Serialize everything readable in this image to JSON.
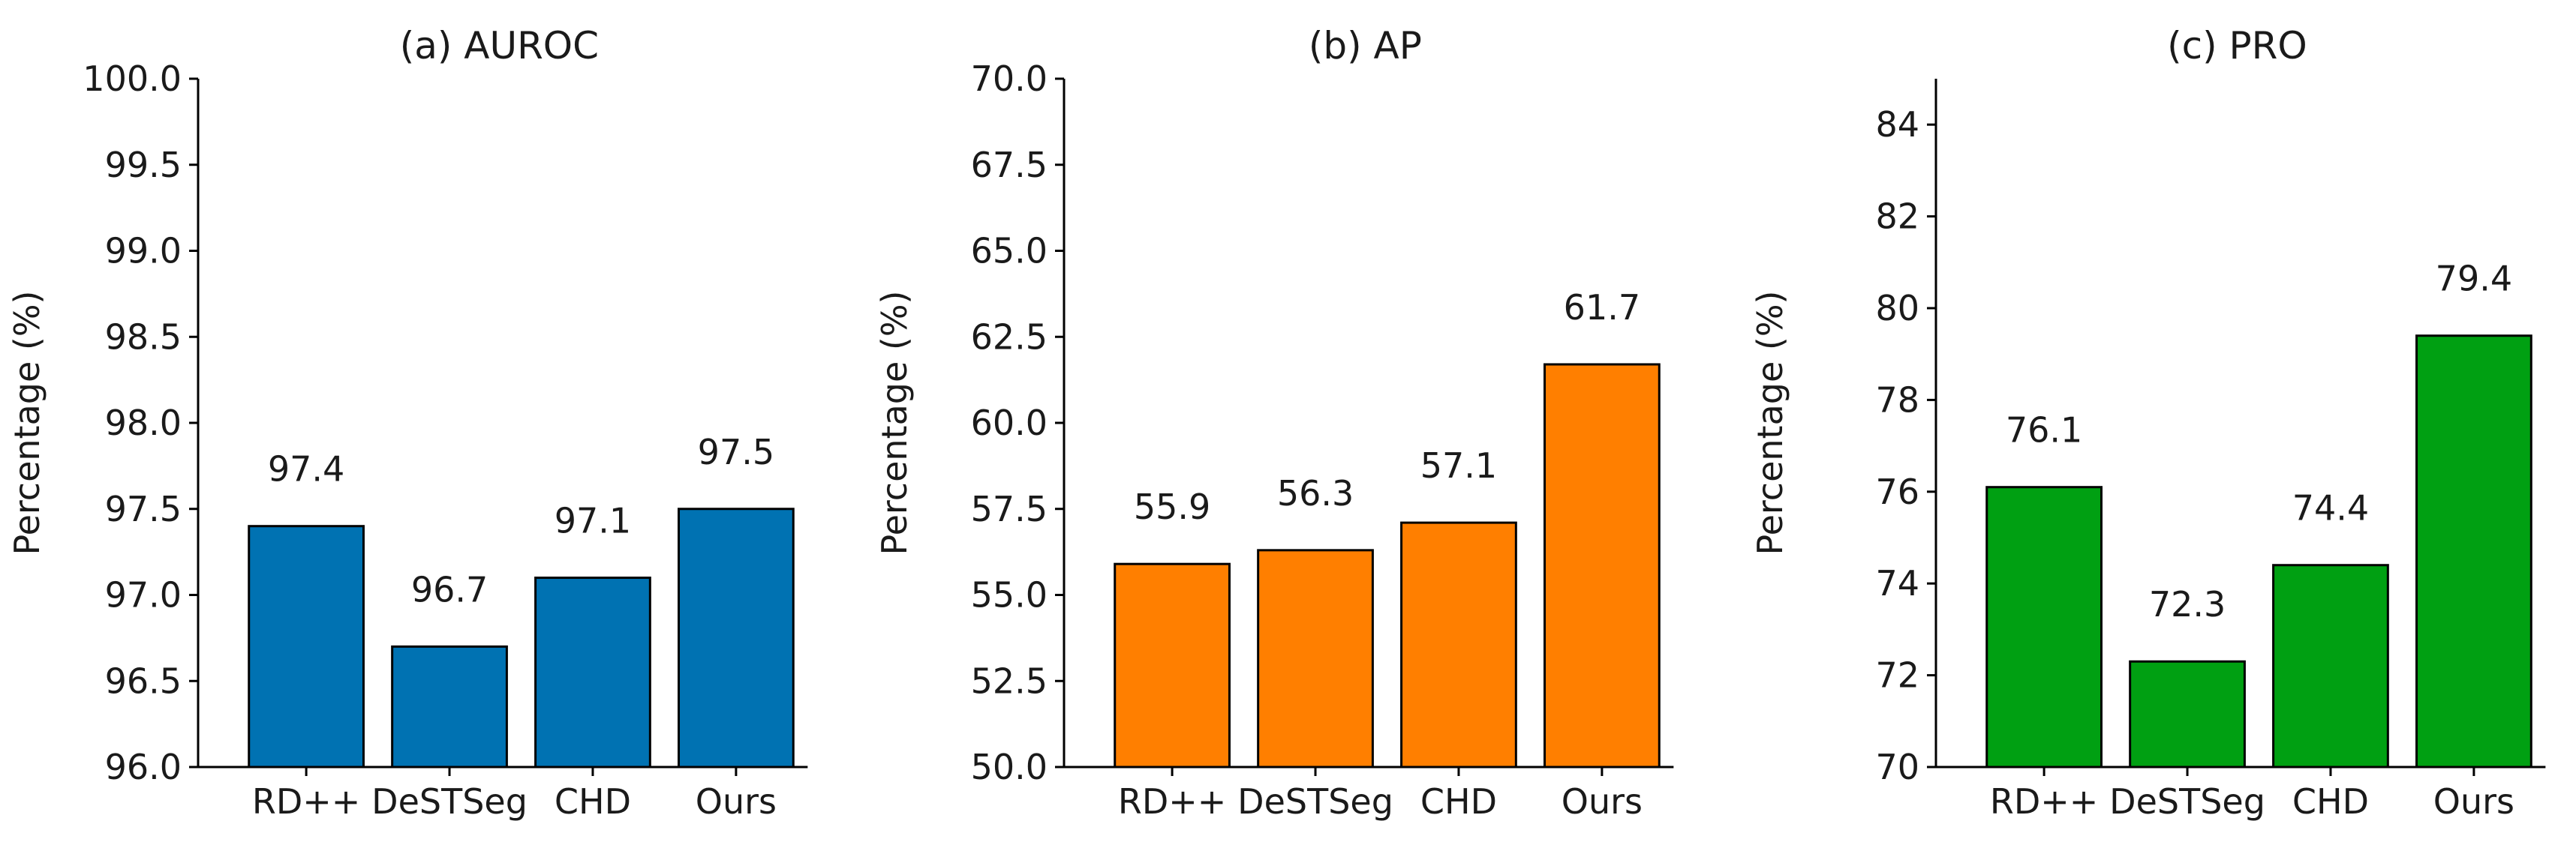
{
  "chart_data": [
    {
      "type": "bar",
      "title": "(a) AUROC",
      "xlabel": "",
      "ylabel": "Percentage (%)",
      "categories": [
        "RD++",
        "DeSTSeg",
        "CHD",
        "Ours"
      ],
      "values": [
        97.4,
        96.7,
        97.1,
        97.5
      ],
      "value_labels": [
        "97.4",
        "96.7",
        "97.1",
        "97.5"
      ],
      "ylim": [
        96.0,
        100.0
      ],
      "yticks": [
        96.0,
        96.5,
        97.0,
        97.5,
        98.0,
        98.5,
        99.0,
        99.5,
        100.0
      ],
      "ytick_labels": [
        "96.0",
        "96.5",
        "97.0",
        "97.5",
        "98.0",
        "98.5",
        "99.0",
        "99.5",
        "100.0"
      ],
      "color": "#0072b2",
      "grid": false,
      "legend": "none"
    },
    {
      "type": "bar",
      "title": "(b) AP",
      "xlabel": "",
      "ylabel": "Percentage (%)",
      "categories": [
        "RD++",
        "DeSTSeg",
        "CHD",
        "Ours"
      ],
      "values": [
        55.9,
        56.3,
        57.1,
        61.7
      ],
      "value_labels": [
        "55.9",
        "56.3",
        "57.1",
        "61.7"
      ],
      "ylim": [
        50.0,
        70.0
      ],
      "yticks": [
        50.0,
        52.5,
        55.0,
        57.5,
        60.0,
        62.5,
        65.0,
        67.5,
        70.0
      ],
      "ytick_labels": [
        "50.0",
        "52.5",
        "55.0",
        "57.5",
        "60.0",
        "62.5",
        "65.0",
        "67.5",
        "70.0"
      ],
      "color": "#ff7f00",
      "grid": false,
      "legend": "none"
    },
    {
      "type": "bar",
      "title": "(c) PRO",
      "xlabel": "",
      "ylabel": "Percentage (%)",
      "categories": [
        "RD++",
        "DeSTSeg",
        "CHD",
        "Ours"
      ],
      "values": [
        76.1,
        72.3,
        74.4,
        79.4
      ],
      "value_labels": [
        "76.1",
        "72.3",
        "74.4",
        "79.4"
      ],
      "ylim": [
        70,
        85
      ],
      "yticks": [
        70,
        72,
        74,
        76,
        78,
        80,
        82,
        84
      ],
      "ytick_labels": [
        "70",
        "72",
        "74",
        "76",
        "78",
        "80",
        "82",
        "84"
      ],
      "color": "#00a012",
      "grid": false,
      "legend": "none"
    }
  ]
}
